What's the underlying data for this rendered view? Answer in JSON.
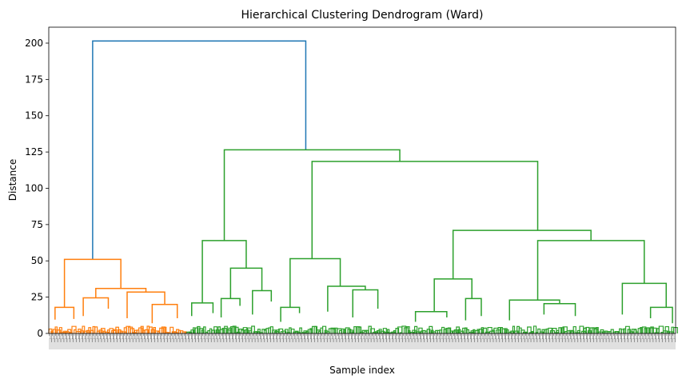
{
  "chart_data": {
    "type": "dendrogram",
    "title": "Hierarchical Clustering Dendrogram (Ward)",
    "xlabel": "Sample index",
    "ylabel": "Distance",
    "ylim": [
      0,
      211
    ],
    "yticks": [
      0,
      25,
      50,
      75,
      100,
      125,
      150,
      175,
      200
    ],
    "n_leaves": 600,
    "grid": false,
    "legend": "none",
    "colors": {
      "root": "#1f77b4",
      "cluster_1": "#ff7f0e",
      "cluster_2": "#2ca02c"
    },
    "links": [
      {
        "name": "root",
        "color": "#1f77b4",
        "x_left": 0.07,
        "x_right": 0.41,
        "height": 201.5,
        "h_left": 51,
        "h_right": 126.5
      },
      {
        "name": "c1-a",
        "color": "#ff7f0e",
        "x_left": 0.025,
        "x_right": 0.115,
        "height": 51,
        "h_left": 18,
        "h_right": 31
      },
      {
        "name": "c1-b",
        "color": "#ff7f0e",
        "x_left": 0.01,
        "x_right": 0.04,
        "height": 18,
        "h_left": 9.5,
        "h_right": 10
      },
      {
        "name": "c1-c",
        "color": "#ff7f0e",
        "x_left": 0.075,
        "x_right": 0.155,
        "height": 31,
        "h_left": 24.5,
        "h_right": 28.5
      },
      {
        "name": "c1-d",
        "color": "#ff7f0e",
        "x_left": 0.055,
        "x_right": 0.095,
        "height": 24.5,
        "h_left": 12,
        "h_right": 17
      },
      {
        "name": "c1-e",
        "color": "#ff7f0e",
        "x_left": 0.125,
        "x_right": 0.185,
        "height": 28.5,
        "h_left": 10.5,
        "h_right": 20
      },
      {
        "name": "c1-f",
        "color": "#ff7f0e",
        "x_left": 0.165,
        "x_right": 0.205,
        "height": 20,
        "h_left": 7,
        "h_right": 10.5
      },
      {
        "name": "c2-top",
        "color": "#2ca02c",
        "x_left": 0.28,
        "x_right": 0.56,
        "height": 126.5,
        "h_left": 64,
        "h_right": 118.5
      },
      {
        "name": "c2-left",
        "color": "#2ca02c",
        "x_left": 0.245,
        "x_right": 0.315,
        "height": 64,
        "h_left": 21,
        "h_right": 45
      },
      {
        "name": "c2-l1",
        "color": "#2ca02c",
        "x_left": 0.228,
        "x_right": 0.262,
        "height": 21,
        "h_left": 12,
        "h_right": 14
      },
      {
        "name": "c2-l2",
        "color": "#2ca02c",
        "x_left": 0.29,
        "x_right": 0.34,
        "height": 45,
        "h_left": 24,
        "h_right": 29.5
      },
      {
        "name": "c2-l3",
        "color": "#2ca02c",
        "x_left": 0.275,
        "x_right": 0.305,
        "height": 24,
        "h_left": 11,
        "h_right": 19
      },
      {
        "name": "c2-l4",
        "color": "#2ca02c",
        "x_left": 0.325,
        "x_right": 0.355,
        "height": 29.5,
        "h_left": 13,
        "h_right": 22
      },
      {
        "name": "c2-right",
        "color": "#2ca02c",
        "x_left": 0.42,
        "x_right": 0.78,
        "height": 118.5,
        "h_left": 51.5,
        "h_right": 71
      },
      {
        "name": "c2-m1",
        "color": "#2ca02c",
        "x_left": 0.385,
        "x_right": 0.465,
        "height": 51.5,
        "h_left": 18,
        "h_right": 32.5
      },
      {
        "name": "c2-m2",
        "color": "#2ca02c",
        "x_left": 0.37,
        "x_right": 0.4,
        "height": 18,
        "h_left": 8,
        "h_right": 14
      },
      {
        "name": "c2-m3",
        "color": "#2ca02c",
        "x_left": 0.445,
        "x_right": 0.505,
        "height": 32.5,
        "h_left": 15,
        "h_right": 30
      },
      {
        "name": "c2-m4",
        "color": "#2ca02c",
        "x_left": 0.485,
        "x_right": 0.525,
        "height": 30,
        "h_left": 11,
        "h_right": 17
      },
      {
        "name": "c2-r1",
        "color": "#2ca02c",
        "x_left": 0.645,
        "x_right": 0.865,
        "height": 71,
        "h_left": 37.5,
        "h_right": 64
      },
      {
        "name": "c2-r2",
        "color": "#2ca02c",
        "x_left": 0.615,
        "x_right": 0.675,
        "height": 37.5,
        "h_left": 15,
        "h_right": 24
      },
      {
        "name": "c2-r3",
        "color": "#2ca02c",
        "x_left": 0.585,
        "x_right": 0.635,
        "height": 15,
        "h_left": 8,
        "h_right": 11
      },
      {
        "name": "c2-r4",
        "color": "#2ca02c",
        "x_left": 0.665,
        "x_right": 0.69,
        "height": 24,
        "h_left": 9,
        "h_right": 12
      },
      {
        "name": "c2-r5",
        "color": "#2ca02c",
        "x_left": 0.78,
        "x_right": 0.95,
        "height": 64,
        "h_left": 23,
        "h_right": 34.5
      },
      {
        "name": "c2-r6",
        "color": "#2ca02c",
        "x_left": 0.735,
        "x_right": 0.815,
        "height": 23,
        "h_left": 9,
        "h_right": 20.5
      },
      {
        "name": "c2-r7",
        "color": "#2ca02c",
        "x_left": 0.79,
        "x_right": 0.84,
        "height": 20.5,
        "h_left": 13,
        "h_right": 12
      },
      {
        "name": "c2-r8",
        "color": "#2ca02c",
        "x_left": 0.915,
        "x_right": 0.985,
        "height": 34.5,
        "h_left": 13,
        "h_right": 18
      },
      {
        "name": "c2-r9",
        "color": "#2ca02c",
        "x_left": 0.96,
        "x_right": 0.995,
        "height": 18,
        "h_left": 10.5,
        "h_right": 7
      }
    ]
  }
}
